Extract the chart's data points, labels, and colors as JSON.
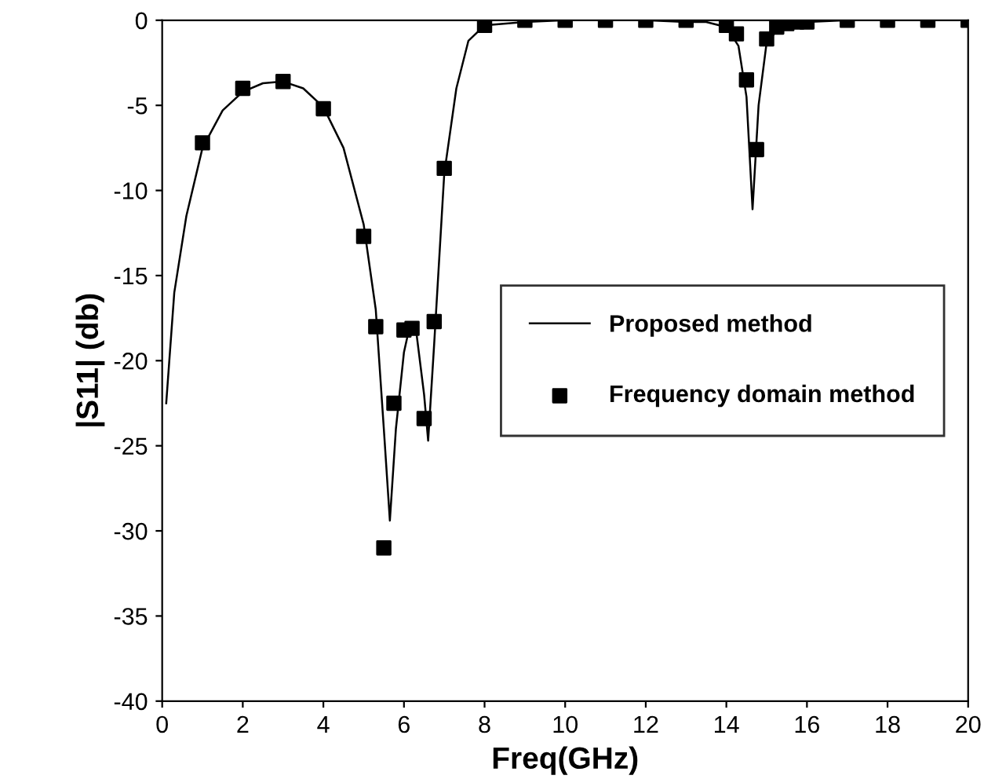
{
  "chart_data": {
    "type": "line",
    "xlabel": "Freq(GHz)",
    "ylabel": "|S11| (db)",
    "xlim": [
      0,
      20
    ],
    "ylim": [
      -40,
      0
    ],
    "xticks": [
      0,
      2,
      4,
      6,
      8,
      10,
      12,
      14,
      16,
      18,
      20
    ],
    "yticks": [
      0,
      -5,
      -10,
      -15,
      -20,
      -25,
      -30,
      -35,
      -40
    ],
    "grid": false,
    "legend": "right",
    "series": [
      {
        "name": "Proposed method",
        "color": "#000000",
        "marker": "none",
        "line_style": "solid",
        "x": [
          0.1,
          0.3,
          0.6,
          1,
          1.5,
          2,
          2.5,
          3,
          3.5,
          4,
          4.5,
          5,
          5.3,
          5.5,
          5.65,
          5.8,
          6,
          6.15,
          6.3,
          6.5,
          6.6,
          6.75,
          7,
          7.3,
          7.6,
          8,
          9,
          10,
          12,
          13,
          13.5,
          14,
          14.3,
          14.5,
          14.65,
          14.8,
          15,
          15.3,
          16,
          17,
          20
        ],
        "values": [
          -22.5,
          -16,
          -11.5,
          -7.5,
          -5.3,
          -4.2,
          -3.7,
          -3.6,
          -4.0,
          -5.1,
          -7.5,
          -12,
          -17,
          -24,
          -29.4,
          -24,
          -19.5,
          -17.9,
          -18.2,
          -22,
          -24.7,
          -19,
          -9,
          -4,
          -1.2,
          -0.3,
          -0.1,
          0,
          0,
          -0.1,
          -0.1,
          -0.4,
          -1.5,
          -4.5,
          -11.1,
          -5,
          -1.3,
          -0.5,
          -0.1,
          0,
          0
        ]
      },
      {
        "name": "Frequency domain method",
        "type": "scatter",
        "color": "#000000",
        "marker": "square",
        "x": [
          1,
          2,
          3,
          4,
          5,
          5.3,
          5.5,
          5.75,
          6,
          6.2,
          6.5,
          6.75,
          7,
          8,
          9,
          10,
          11,
          12,
          13,
          14,
          14.25,
          14.5,
          14.75,
          15,
          15.25,
          15.5,
          15.75,
          16,
          17,
          18,
          19,
          20
        ],
        "values": [
          -7.2,
          -4.0,
          -3.6,
          -5.2,
          -12.7,
          -18.0,
          -31.0,
          -22.5,
          -18.2,
          -18.1,
          -23.4,
          -17.7,
          -8.7,
          -0.3,
          0,
          0,
          0,
          0,
          0,
          -0.3,
          -0.8,
          -3.5,
          -7.6,
          -1.1,
          -0.4,
          -0.2,
          -0.1,
          -0.1,
          0,
          0,
          0,
          0
        ]
      }
    ]
  }
}
